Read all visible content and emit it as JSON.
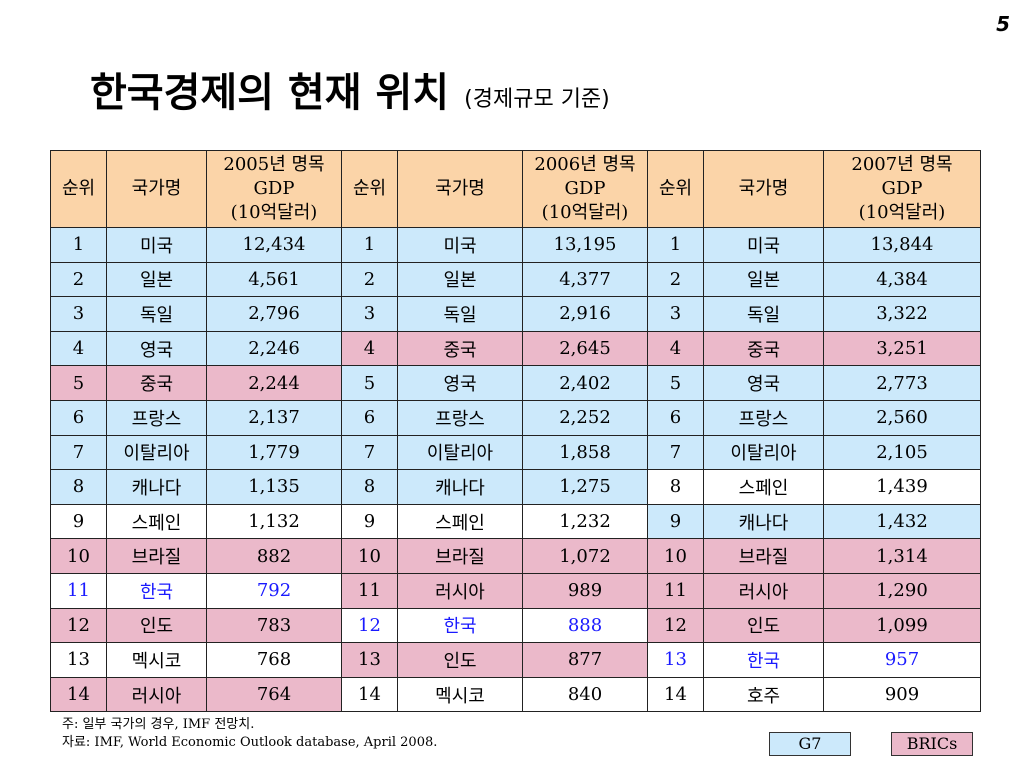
{
  "page_number": "5",
  "title": {
    "main": "한국경제의 현재 위치",
    "sub": "(경제규모 기준)"
  },
  "colors": {
    "header": "#fbd4a8",
    "g7": "#cce9fb",
    "brics": "#ebb9ca",
    "korea_text": "#1a1aff"
  },
  "table": {
    "headers": {
      "rank": "순위",
      "country": "국가명",
      "gdp_years": [
        {
          "line1": "2005년 명목",
          "line2": "GDP",
          "line3": "(10억달러)"
        },
        {
          "line1": "2006년 명목",
          "line2": "GDP",
          "line3": "(10억달러)"
        },
        {
          "line1": "2007년 명목",
          "line2": "GDP",
          "line3": "(10억달러)"
        }
      ]
    },
    "rows": [
      [
        {
          "rank": "1",
          "country": "미국",
          "gdp": "12,434",
          "group": "g7"
        },
        {
          "rank": "1",
          "country": "미국",
          "gdp": "13,195",
          "group": "g7"
        },
        {
          "rank": "1",
          "country": "미국",
          "gdp": "13,844",
          "group": "g7"
        }
      ],
      [
        {
          "rank": "2",
          "country": "일본",
          "gdp": "4,561",
          "group": "g7"
        },
        {
          "rank": "2",
          "country": "일본",
          "gdp": "4,377",
          "group": "g7"
        },
        {
          "rank": "2",
          "country": "일본",
          "gdp": "4,384",
          "group": "g7"
        }
      ],
      [
        {
          "rank": "3",
          "country": "독일",
          "gdp": "2,796",
          "group": "g7"
        },
        {
          "rank": "3",
          "country": "독일",
          "gdp": "2,916",
          "group": "g7"
        },
        {
          "rank": "3",
          "country": "독일",
          "gdp": "3,322",
          "group": "g7"
        }
      ],
      [
        {
          "rank": "4",
          "country": "영국",
          "gdp": "2,246",
          "group": "g7"
        },
        {
          "rank": "4",
          "country": "중국",
          "gdp": "2,645",
          "group": "brics"
        },
        {
          "rank": "4",
          "country": "중국",
          "gdp": "3,251",
          "group": "brics"
        }
      ],
      [
        {
          "rank": "5",
          "country": "중국",
          "gdp": "2,244",
          "group": "brics"
        },
        {
          "rank": "5",
          "country": "영국",
          "gdp": "2,402",
          "group": "g7"
        },
        {
          "rank": "5",
          "country": "영국",
          "gdp": "2,773",
          "group": "g7"
        }
      ],
      [
        {
          "rank": "6",
          "country": "프랑스",
          "gdp": "2,137",
          "group": "g7"
        },
        {
          "rank": "6",
          "country": "프랑스",
          "gdp": "2,252",
          "group": "g7"
        },
        {
          "rank": "6",
          "country": "프랑스",
          "gdp": "2,560",
          "group": "g7"
        }
      ],
      [
        {
          "rank": "7",
          "country": "이탈리아",
          "gdp": "1,779",
          "group": "g7"
        },
        {
          "rank": "7",
          "country": "이탈리아",
          "gdp": "1,858",
          "group": "g7"
        },
        {
          "rank": "7",
          "country": "이탈리아",
          "gdp": "2,105",
          "group": "g7"
        }
      ],
      [
        {
          "rank": "8",
          "country": "캐나다",
          "gdp": "1,135",
          "group": "g7"
        },
        {
          "rank": "8",
          "country": "캐나다",
          "gdp": "1,275",
          "group": "g7"
        },
        {
          "rank": "8",
          "country": "스페인",
          "gdp": "1,439",
          "group": "plain"
        }
      ],
      [
        {
          "rank": "9",
          "country": "스페인",
          "gdp": "1,132",
          "group": "plain"
        },
        {
          "rank": "9",
          "country": "스페인",
          "gdp": "1,232",
          "group": "plain"
        },
        {
          "rank": "9",
          "country": "캐나다",
          "gdp": "1,432",
          "group": "g7"
        }
      ],
      [
        {
          "rank": "10",
          "country": "브라질",
          "gdp": "882",
          "group": "brics"
        },
        {
          "rank": "10",
          "country": "브라질",
          "gdp": "1,072",
          "group": "brics"
        },
        {
          "rank": "10",
          "country": "브라질",
          "gdp": "1,314",
          "group": "brics"
        }
      ],
      [
        {
          "rank": "11",
          "country": "한국",
          "gdp": "792",
          "group": "korea"
        },
        {
          "rank": "11",
          "country": "러시아",
          "gdp": "989",
          "group": "brics"
        },
        {
          "rank": "11",
          "country": "러시아",
          "gdp": "1,290",
          "group": "brics"
        }
      ],
      [
        {
          "rank": "12",
          "country": "인도",
          "gdp": "783",
          "group": "brics"
        },
        {
          "rank": "12",
          "country": "한국",
          "gdp": "888",
          "group": "korea"
        },
        {
          "rank": "12",
          "country": "인도",
          "gdp": "1,099",
          "group": "brics"
        }
      ],
      [
        {
          "rank": "13",
          "country": "멕시코",
          "gdp": "768",
          "group": "plain"
        },
        {
          "rank": "13",
          "country": "인도",
          "gdp": "877",
          "group": "brics"
        },
        {
          "rank": "13",
          "country": "한국",
          "gdp": "957",
          "group": "korea"
        }
      ],
      [
        {
          "rank": "14",
          "country": "러시아",
          "gdp": "764",
          "group": "brics"
        },
        {
          "rank": "14",
          "country": "멕시코",
          "gdp": "840",
          "group": "plain"
        },
        {
          "rank": "14",
          "country": "호주",
          "gdp": "909",
          "group": "plain"
        }
      ]
    ]
  },
  "notes": {
    "note": "주: 일부 국가의 경우, IMF 전망치.",
    "source": "자료: IMF, World Economic Outlook database, April 2008."
  },
  "legend": {
    "g7": "G7",
    "brics": "BRICs"
  }
}
